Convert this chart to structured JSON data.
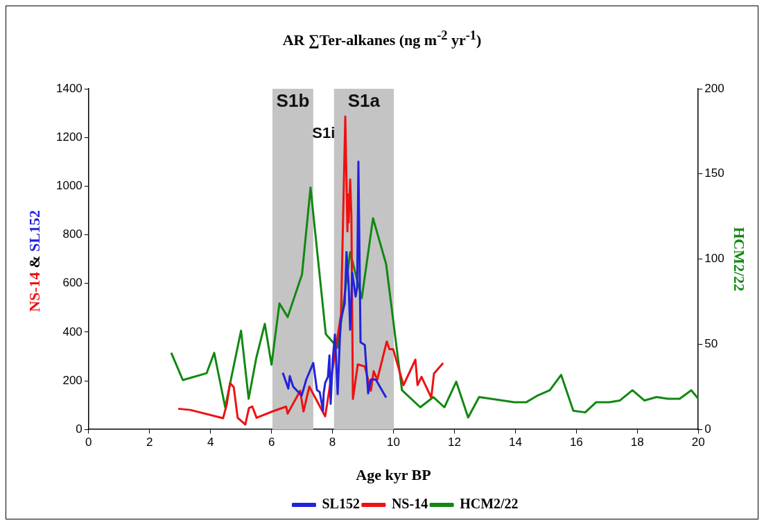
{
  "chart_data": {
    "type": "line",
    "title": "AR ∑Ter-alkanes (ng m$^{-2}$ yr$^{-1}$)",
    "xlabel": "Age kyr BP",
    "ylabel": "NS-14 & SL152",
    "y2label": "HCM2/22",
    "xlim": [
      0,
      20
    ],
    "xticks": [
      0,
      2,
      4,
      6,
      8,
      10,
      12,
      14,
      16,
      18,
      20
    ],
    "ylim": [
      0,
      1400
    ],
    "yticks": [
      0,
      200,
      400,
      600,
      800,
      1000,
      1200,
      1400
    ],
    "y2lim": [
      0,
      200
    ],
    "y2ticks": [
      0,
      50,
      100,
      150,
      200
    ],
    "grid": false,
    "legend": "bottom",
    "marker": "none",
    "line_style": "solid",
    "series": [
      {
        "name": "SL152",
        "color": "#2222dd",
        "x": [
          6.37,
          6.55,
          6.6,
          6.71,
          6.99,
          7.14,
          7.37,
          7.49,
          7.58,
          7.69,
          7.71,
          7.76,
          7.85,
          7.9,
          7.94,
          8.01,
          8.08,
          8.17,
          8.24,
          8.28,
          8.4,
          8.46,
          8.53,
          8.58,
          8.65,
          8.76,
          8.81,
          8.85,
          8.92,
          9.06,
          9.17,
          9.26,
          9.42,
          9.76
        ],
        "values": [
          233,
          168,
          219,
          176,
          139,
          205,
          273,
          162,
          154,
          77,
          148,
          191,
          216,
          304,
          105,
          290,
          390,
          145,
          367,
          452,
          518,
          729,
          595,
          410,
          643,
          546,
          586,
          1101,
          358,
          347,
          148,
          205,
          205,
          131
        ]
      },
      {
        "name": "NS-14",
        "color": "#ee1111",
        "x": [
          2.94,
          3.34,
          4.41,
          4.53,
          4.64,
          4.76,
          4.89,
          5.14,
          5.26,
          5.37,
          5.51,
          6.03,
          6.48,
          6.53,
          6.94,
          7.05,
          7.24,
          7.76,
          8.28,
          8.42,
          8.49,
          8.51,
          8.53,
          8.58,
          8.62,
          8.67,
          8.83,
          9.06,
          9.26,
          9.35,
          9.47,
          9.78,
          9.87,
          9.99,
          10.33,
          10.72,
          10.79,
          10.92,
          11.24,
          11.33,
          11.63
        ],
        "values": [
          85,
          80,
          46,
          102,
          190,
          174,
          48,
          20,
          88,
          94,
          48,
          74,
          94,
          65,
          159,
          74,
          176,
          54,
          472,
          1286,
          814,
          965,
          851,
          1027,
          879,
          125,
          267,
          259,
          159,
          239,
          205,
          361,
          330,
          330,
          182,
          287,
          182,
          216,
          131,
          230,
          273
        ]
      },
      {
        "name": "HCM2/22",
        "color": "#118811",
        "axis": "y2",
        "x": [
          2.71,
          3.09,
          3.87,
          4.12,
          4.48,
          5.0,
          5.25,
          5.5,
          5.78,
          6.0,
          6.26,
          6.53,
          7.0,
          7.28,
          7.78,
          8.17,
          8.58,
          8.96,
          9.33,
          9.76,
          10.28,
          10.88,
          11.31,
          11.67,
          12.06,
          12.45,
          12.81,
          13.97,
          14.36,
          14.74,
          15.13,
          15.5,
          15.9,
          16.29,
          16.65,
          17.08,
          17.43,
          17.84,
          18.23,
          18.63,
          19.0,
          19.39,
          19.77,
          20.0
        ],
        "values": [
          45,
          29,
          33,
          45,
          13,
          58,
          18,
          42,
          62,
          38,
          74,
          66,
          91,
          142,
          56,
          48,
          104,
          77,
          124,
          97,
          23,
          13,
          19,
          13,
          28,
          7,
          19,
          16,
          16,
          20,
          23,
          32,
          11,
          10,
          16,
          16,
          17,
          23,
          17,
          19,
          18,
          18,
          23,
          18
        ]
      }
    ],
    "bands": [
      {
        "axis": "x",
        "from": 6.03,
        "to": 7.37,
        "label": "S1b",
        "color": "#c4c4c4"
      },
      {
        "axis": "x",
        "from": 8.05,
        "to": 10.01,
        "label": "S1a",
        "color": "#c4c4c4"
      }
    ],
    "annotations": [
      "S1i"
    ]
  }
}
